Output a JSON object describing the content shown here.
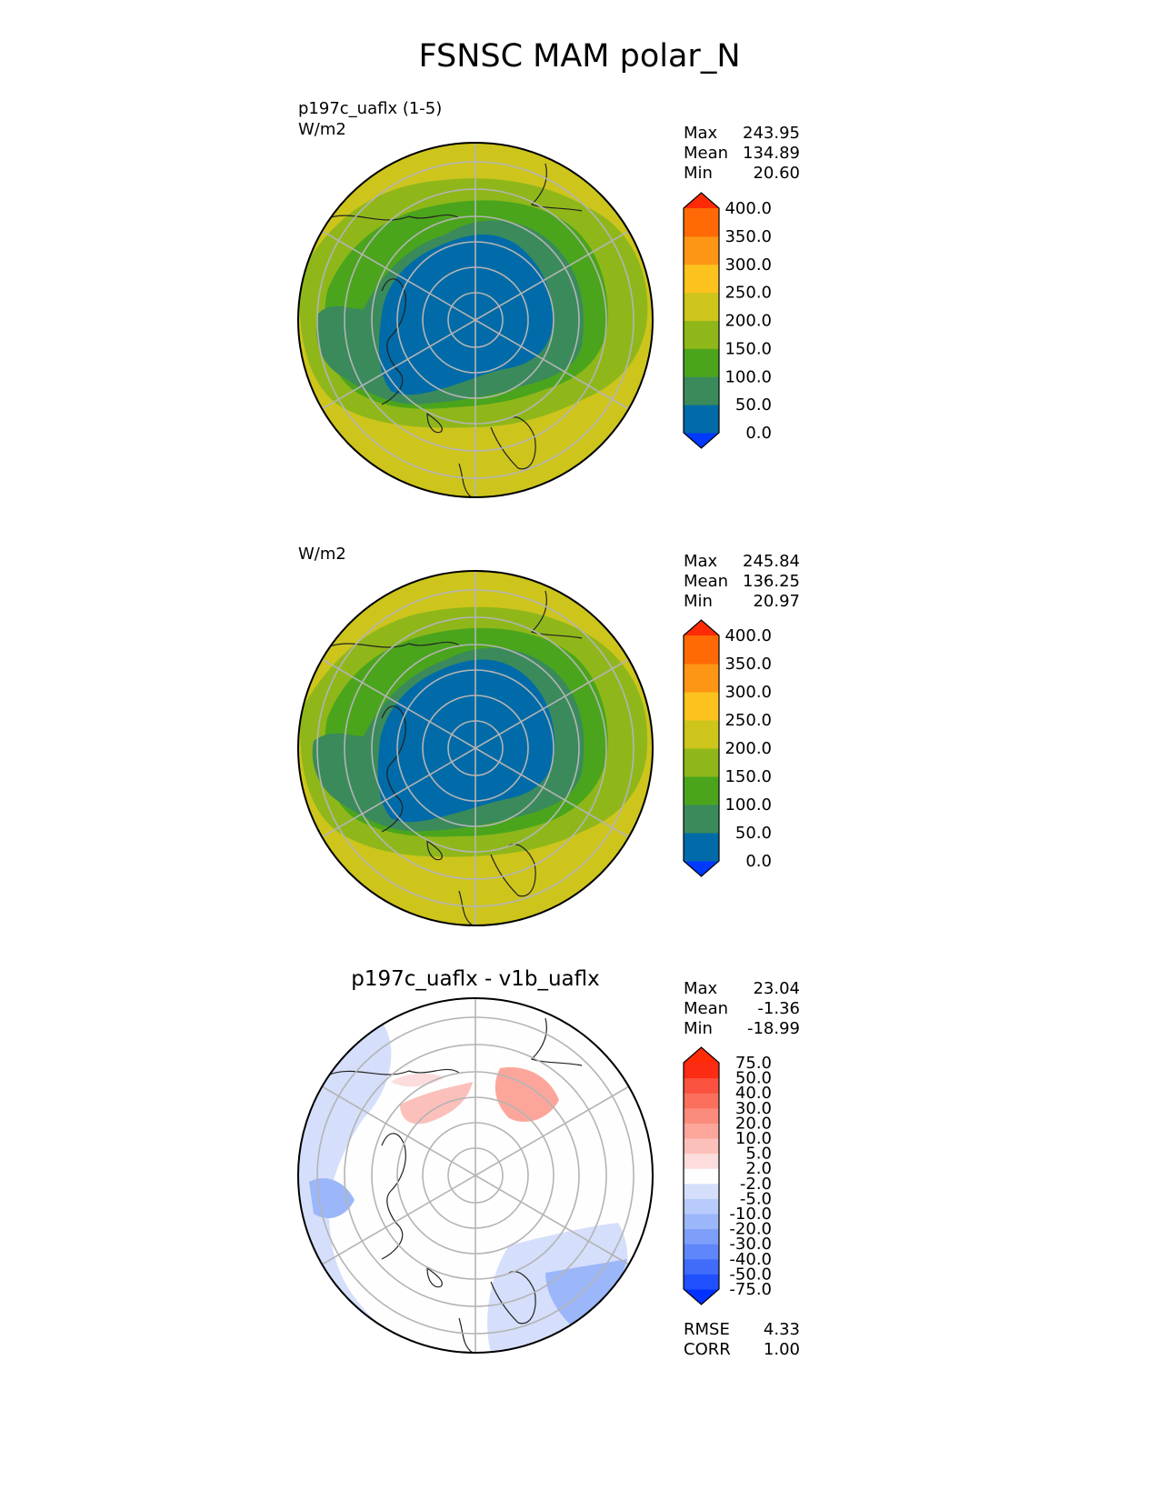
{
  "figure": {
    "title": "FSNSC MAM polar_N"
  },
  "panels": [
    {
      "label_line1": "p197c_uaflx (1-5)",
      "label_line2": "W/m2",
      "title": "",
      "stats": [
        {
          "name": "Max",
          "value": "243.95"
        },
        {
          "name": "Mean",
          "value": "134.89"
        },
        {
          "name": "Min",
          "value": "20.60"
        }
      ]
    },
    {
      "label_line1": "",
      "label_line2": "W/m2",
      "title": "",
      "stats": [
        {
          "name": "Max",
          "value": "245.84"
        },
        {
          "name": "Mean",
          "value": "136.25"
        },
        {
          "name": "Min",
          "value": "20.97"
        }
      ]
    },
    {
      "label_line1": "",
      "label_line2": "",
      "title": "p197c_uaflx - v1b_uaflx",
      "stats": [
        {
          "name": "Max",
          "value": "23.04"
        },
        {
          "name": "Mean",
          "value": "-1.36"
        },
        {
          "name": "Min",
          "value": "-18.99"
        }
      ],
      "extra_stats": [
        {
          "name": "RMSE",
          "value": "4.33"
        },
        {
          "name": "CORR",
          "value": "1.00"
        }
      ]
    }
  ],
  "chart_data": [
    {
      "type": "heatmap",
      "projection": "north-polar-stereographic",
      "title": "p197c_uaflx (1-5)",
      "units": "W/m2",
      "colorbar": {
        "levels": [
          "0.0",
          "50.0",
          "100.0",
          "150.0",
          "200.0",
          "250.0",
          "300.0",
          "350.0",
          "400.0"
        ],
        "colors": [
          "#0039ff",
          "#006ba8",
          "#3a8a5c",
          "#4aa51c",
          "#8fb71a",
          "#cdc51c",
          "#fcc21d",
          "#fd9614",
          "#ff6a06",
          "#ff2a06"
        ],
        "extend": "both"
      },
      "max": 243.95,
      "mean": 134.89,
      "min": 20.6
    },
    {
      "type": "heatmap",
      "projection": "north-polar-stereographic",
      "units": "W/m2",
      "colorbar": {
        "levels": [
          "0.0",
          "50.0",
          "100.0",
          "150.0",
          "200.0",
          "250.0",
          "300.0",
          "350.0",
          "400.0"
        ],
        "colors": [
          "#0039ff",
          "#006ba8",
          "#3a8a5c",
          "#4aa51c",
          "#8fb71a",
          "#cdc51c",
          "#fcc21d",
          "#fd9614",
          "#ff6a06",
          "#ff2a06"
        ],
        "extend": "both"
      },
      "max": 245.84,
      "mean": 136.25,
      "min": 20.97
    },
    {
      "type": "heatmap",
      "projection": "north-polar-stereographic",
      "title": "p197c_uaflx - v1b_uaflx",
      "colorbar": {
        "levels": [
          "-75.0",
          "-50.0",
          "-40.0",
          "-30.0",
          "-20.0",
          "-10.0",
          "-5.0",
          "-2.0",
          "2.0",
          "5.0",
          "10.0",
          "20.0",
          "30.0",
          "40.0",
          "50.0",
          "75.0"
        ],
        "colors": [
          "#0031ff",
          "#2050fd",
          "#406bfb",
          "#5f86fa",
          "#7d9ff9",
          "#9bb6f9",
          "#b8cbfa",
          "#d5dffb",
          "#fefefe",
          "#fcdcdc",
          "#fcc0bb",
          "#fca69b",
          "#fb8b7c",
          "#fb6f5d",
          "#fb523f",
          "#fc2b14",
          "#ff2a06"
        ],
        "extend": "both"
      },
      "max": 23.04,
      "mean": -1.36,
      "min": -18.99,
      "rmse": 4.33,
      "corr": 1.0
    }
  ]
}
